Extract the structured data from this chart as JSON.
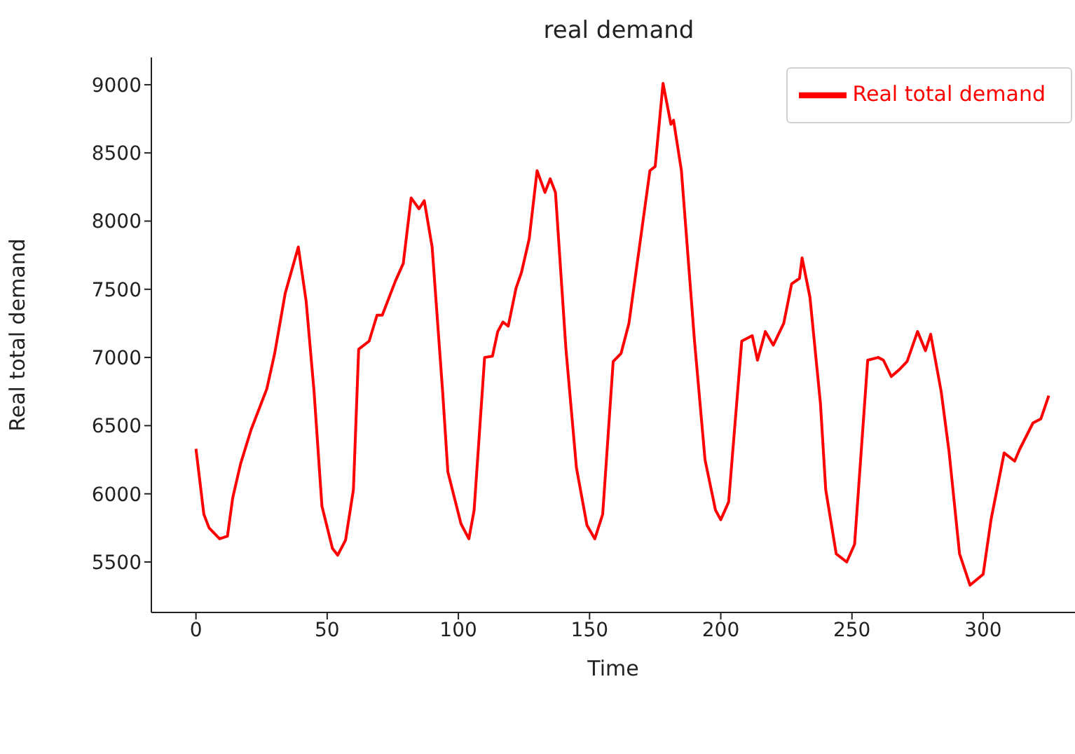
{
  "chart_data": {
    "type": "line",
    "title": "real demand",
    "xlabel": "Time",
    "ylabel": "Real total demand",
    "x": [
      0,
      3,
      5,
      9,
      12,
      14,
      17,
      21,
      27,
      30,
      34,
      39,
      42,
      45,
      48,
      52,
      54,
      57,
      60,
      62,
      66,
      69,
      71,
      76,
      79,
      82,
      85,
      87,
      90,
      94,
      96,
      101,
      104,
      106,
      110,
      113,
      115,
      117,
      119,
      122,
      124,
      127,
      130,
      133,
      135,
      137,
      141,
      145,
      149,
      152,
      155,
      159,
      162,
      165,
      169,
      173,
      175,
      178,
      181,
      182,
      185,
      190,
      194,
      198,
      200,
      203,
      208,
      212,
      214,
      217,
      220,
      224,
      227,
      230,
      231,
      234,
      238,
      240,
      244,
      248,
      251,
      256,
      260,
      262,
      265,
      268,
      271,
      275,
      278,
      280,
      284,
      287,
      291,
      295,
      300,
      303,
      308,
      312,
      314,
      319,
      322,
      325
    ],
    "series": [
      {
        "name": "Real total demand",
        "color": "#ff0000",
        "values": [
          6330,
          5850,
          5750,
          5670,
          5690,
          5970,
          6220,
          6470,
          6770,
          7030,
          7470,
          7810,
          7410,
          6750,
          5910,
          5600,
          5550,
          5660,
          6030,
          7060,
          7120,
          7310,
          7310,
          7560,
          7690,
          8170,
          8090,
          8150,
          7810,
          6750,
          6160,
          5780,
          5670,
          5880,
          7000,
          7010,
          7190,
          7260,
          7230,
          7510,
          7620,
          7870,
          8370,
          8210,
          8310,
          8210,
          7060,
          6190,
          5770,
          5670,
          5850,
          6970,
          7030,
          7250,
          7810,
          8370,
          8400,
          9010,
          8710,
          8740,
          8370,
          7120,
          6250,
          5880,
          5810,
          5940,
          7120,
          7160,
          6980,
          7190,
          7090,
          7250,
          7540,
          7580,
          7730,
          7440,
          6660,
          6030,
          5560,
          5500,
          5630,
          6980,
          7000,
          6980,
          6860,
          6910,
          6970,
          7190,
          7050,
          7170,
          6750,
          6310,
          5560,
          5330,
          5410,
          5810,
          6300,
          6240,
          6330,
          6520,
          6550,
          6720
        ]
      }
    ],
    "xlim": [
      -17,
      335
    ],
    "ylim": [
      5130,
      9200
    ],
    "xticks": [
      0,
      50,
      100,
      150,
      200,
      250,
      300
    ],
    "yticks": [
      5500,
      6000,
      6500,
      7000,
      7500,
      8000,
      8500,
      9000
    ],
    "grid": false,
    "legend": "top right",
    "marker": "none",
    "line_style": "solid"
  }
}
